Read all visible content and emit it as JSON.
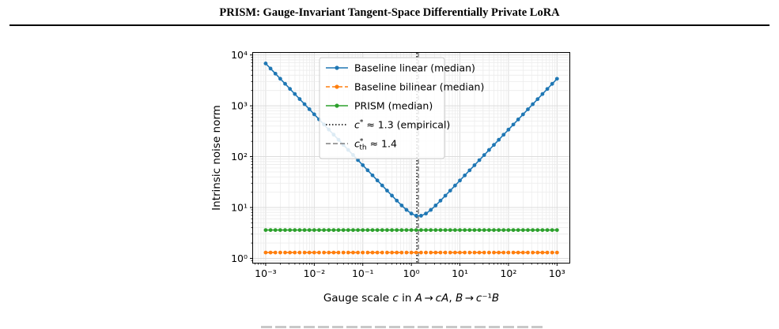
{
  "header": {
    "title": "PRISM: Gauge-Invariant Tangent-Space Differentially Private LoRA"
  },
  "chart_data": {
    "type": "line",
    "title": "",
    "xlabel": "Gauge scale c in A→cA,  B→c⁻¹B",
    "ylabel": "Intrinsic noise norm",
    "xscale": "log",
    "yscale": "log",
    "xlim": [
      0.00055,
      1800
    ],
    "ylim": [
      0.82,
      11000
    ],
    "grid": true,
    "legend_position": "top-center",
    "x_tick_labels": [
      "10⁻³",
      "10⁻²",
      "10⁻¹",
      "10⁰",
      "10¹",
      "10²",
      "10³"
    ],
    "y_tick_labels": [
      "10⁰",
      "10¹",
      "10²",
      "10³",
      "10⁴"
    ],
    "x_range": [
      0.001,
      1000
    ],
    "num_points": 61,
    "series": [
      {
        "name": "Baseline linear (median)",
        "color": "#1f77b4",
        "style": "solid",
        "marker": "dot",
        "description": "c^-1 branch and c branch around minimum",
        "shape": "abs-linear",
        "values_at": {
          "0.001": 6800,
          "0.01": 680,
          "0.1": 68,
          "1": 7.1,
          "1.3": 6.7,
          "10": 34,
          "100": 340,
          "1000": 3400
        }
      },
      {
        "name": "Baseline bilinear (median)",
        "color": "#ff7f0e",
        "style": "dashed",
        "marker": "dot",
        "constant": 1.3
      },
      {
        "name": "PRISM (median)",
        "color": "#2ca02c",
        "style": "solid",
        "marker": "dot",
        "constant": 3.6
      }
    ],
    "vlines": [
      {
        "name": "c* ≈ 1.3 (empirical)",
        "x": 1.3,
        "color": "#000000",
        "style": "dotted"
      },
      {
        "name": "c*th ≈ 1.4",
        "x": 1.4,
        "color": "#808080",
        "style": "dashed"
      }
    ],
    "legend": [
      {
        "label": "Baseline linear (median)"
      },
      {
        "label": "Baseline bilinear (median)"
      },
      {
        "label": "PRISM (median)"
      },
      {
        "label": "c* ≈ 1.3 (empirical)"
      },
      {
        "label": "c*th ≈ 1.4"
      }
    ]
  }
}
